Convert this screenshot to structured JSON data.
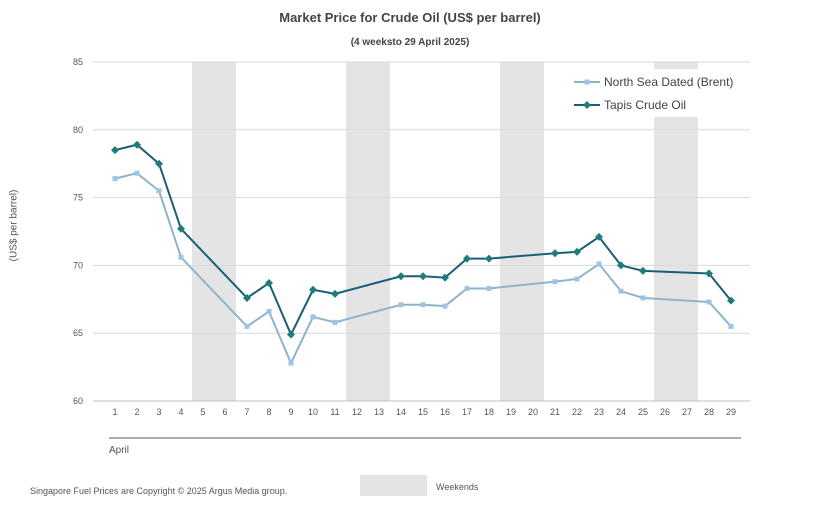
{
  "chart_data": {
    "type": "line",
    "title": "Market Price for Crude  Oil (US$ per barrel)",
    "subtitle": "(4 weeksto 29 April 2025)",
    "ylabel": "(US$ per barrel)",
    "xlabel": "April",
    "ylim": [
      60,
      85
    ],
    "yticks": [
      60,
      65,
      70,
      75,
      80,
      85
    ],
    "x": [
      1,
      2,
      3,
      4,
      5,
      6,
      7,
      8,
      9,
      10,
      11,
      12,
      13,
      14,
      15,
      16,
      17,
      18,
      19,
      20,
      21,
      22,
      23,
      24,
      25,
      26,
      27,
      28,
      29
    ],
    "weekend_bands": [
      [
        5,
        6
      ],
      [
        12,
        13
      ],
      [
        19,
        20
      ],
      [
        26,
        27
      ]
    ],
    "grid": true,
    "legend_position": "top-right",
    "series": [
      {
        "name": "North Sea Dated (Brent)",
        "color": "#9dc3e6",
        "line_color": "#8fb3c8",
        "marker": "square",
        "values": [
          76.4,
          76.8,
          75.5,
          70.6,
          null,
          null,
          65.5,
          66.6,
          62.8,
          66.2,
          65.8,
          null,
          null,
          67.1,
          67.1,
          67.0,
          68.3,
          68.3,
          null,
          null,
          68.8,
          69.0,
          70.1,
          68.1,
          67.6,
          null,
          null,
          67.3,
          65.5
        ]
      },
      {
        "name": "Tapis Crude Oil",
        "color": "#1d7d7a",
        "line_color": "#1a5e78",
        "marker": "diamond",
        "values": [
          78.5,
          78.9,
          77.5,
          72.7,
          null,
          null,
          67.6,
          68.7,
          64.9,
          68.2,
          67.9,
          null,
          null,
          69.2,
          69.2,
          69.1,
          70.5,
          70.5,
          null,
          null,
          70.9,
          71.0,
          72.1,
          70.0,
          69.6,
          null,
          null,
          69.4,
          67.4
        ]
      }
    ]
  },
  "footer": {
    "copyright": "Singapore Fuel Prices are Copyright © 2025 Argus Media group.",
    "weekends_label": "Weekends",
    "weekends_color": "#e4e4e4"
  }
}
